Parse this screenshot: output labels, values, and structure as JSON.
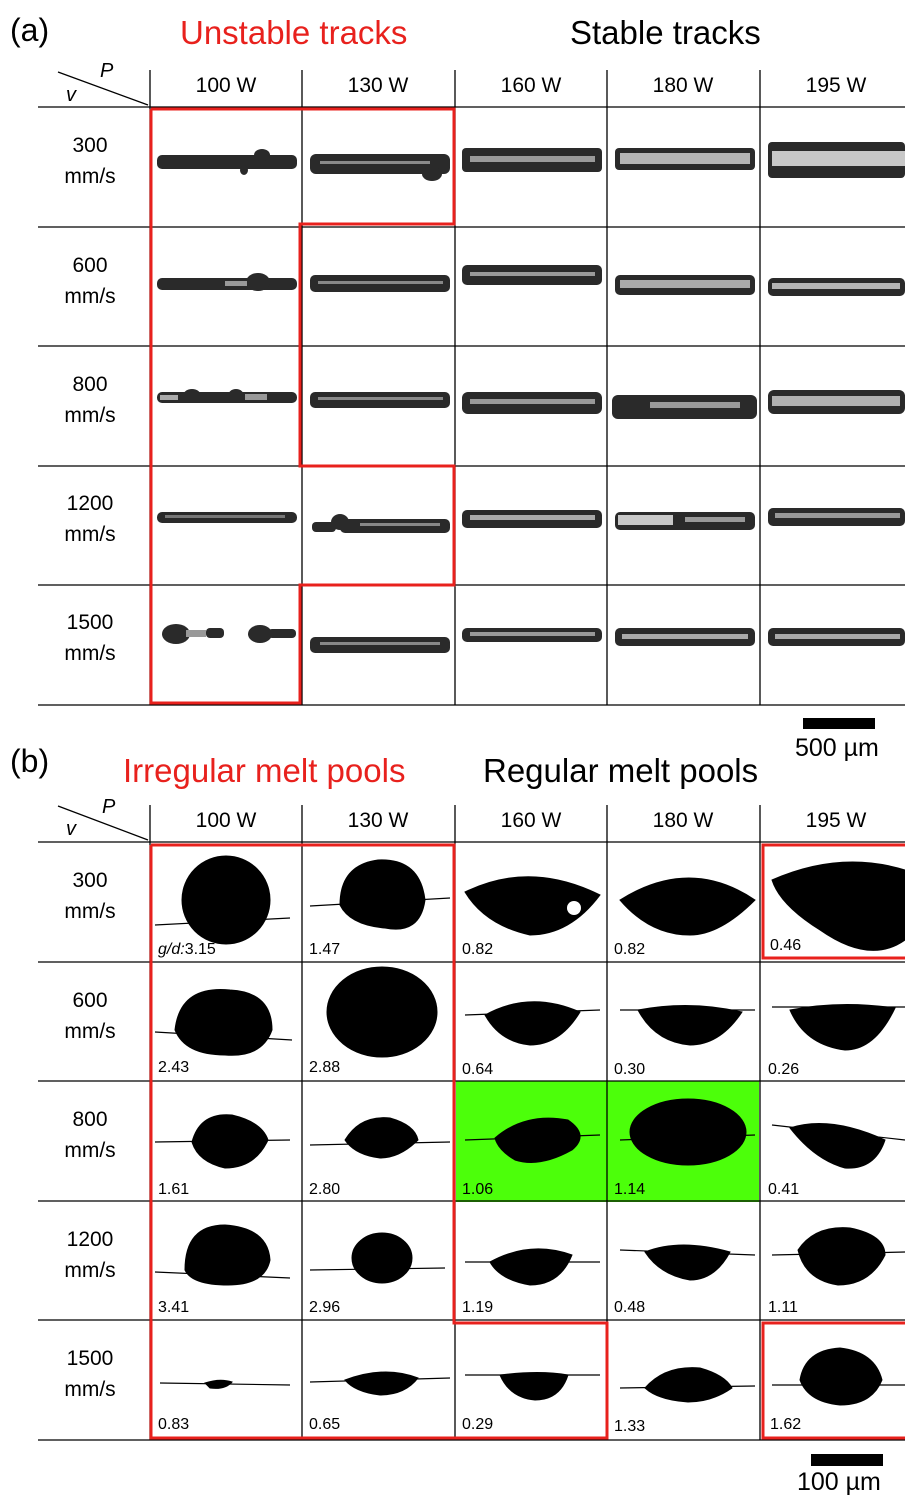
{
  "panel_a": {
    "label": "(a)",
    "heading_red": "Unstable tracks",
    "heading_black": "Stable tracks",
    "axis_p": "P",
    "axis_v": "v",
    "powers": [
      "100 W",
      "130 W",
      "160 W",
      "180 W",
      "195 W"
    ],
    "speeds": [
      [
        "300",
        "mm/s"
      ],
      [
        "600",
        "mm/s"
      ],
      [
        "800",
        "mm/s"
      ],
      [
        "1200",
        "mm/s"
      ],
      [
        "1500",
        "mm/s"
      ]
    ],
    "scale": "500 µm"
  },
  "panel_b": {
    "label": "(b)",
    "heading_red": "Irregular melt pools",
    "heading_black": "Regular melt pools",
    "axis_p": "P",
    "axis_v": "v",
    "powers": [
      "100 W",
      "130 W",
      "160 W",
      "180 W",
      "195 W"
    ],
    "speeds": [
      [
        "300",
        "mm/s"
      ],
      [
        "600",
        "mm/s"
      ],
      [
        "800",
        "mm/s"
      ],
      [
        "1200",
        "mm/s"
      ],
      [
        "1500",
        "mm/s"
      ]
    ],
    "gd_prefix": "g/d:",
    "gd_values": [
      [
        "3.15",
        "1.47",
        "0.82",
        "0.82",
        "0.46"
      ],
      [
        "2.43",
        "2.88",
        "0.64",
        "0.30",
        "0.26"
      ],
      [
        "1.61",
        "2.80",
        "1.06",
        "1.14",
        "0.41"
      ],
      [
        "3.41",
        "2.96",
        "1.19",
        "0.48",
        "1.11"
      ],
      [
        "0.83",
        "0.65",
        "0.29",
        "1.33",
        "1.62"
      ]
    ],
    "highlight_color": "#4cff0a",
    "scale": "100 µm"
  },
  "colors": {
    "unstable": "#e8211d",
    "grid": "#000000"
  }
}
